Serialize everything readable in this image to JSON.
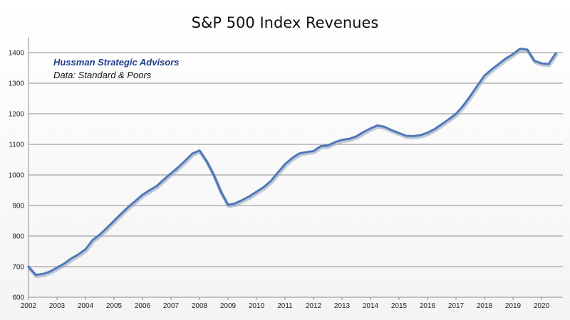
{
  "chart_data": {
    "type": "line",
    "title": "S&P 500 Index Revenues",
    "annotations": [
      "Hussman Strategic Advisors",
      "Data: Standard & Poors"
    ],
    "xlabel": "",
    "ylabel": "",
    "xlim": [
      2002,
      2020.75
    ],
    "ylim": [
      600,
      1450
    ],
    "x_ticks": [
      "2002",
      "2003",
      "2004",
      "2005",
      "2006",
      "2007",
      "2008",
      "2009",
      "2010",
      "2011",
      "2012",
      "2013",
      "2014",
      "2015",
      "2016",
      "2017",
      "2018",
      "2019",
      "2020"
    ],
    "y_ticks": [
      600,
      700,
      800,
      900,
      1000,
      1100,
      1200,
      1300,
      1400
    ],
    "grid": "horizontal",
    "line_color": "#4f78b8",
    "series": [
      {
        "x": [
          2002,
          2002.25,
          2002.5,
          2002.75,
          2003,
          2003.25,
          2003.5,
          2003.75,
          2004,
          2004.25,
          2004.5,
          2004.75,
          2005,
          2005.25,
          2005.5,
          2005.75,
          2006,
          2006.25,
          2006.5,
          2006.75,
          2007,
          2007.25,
          2007.5,
          2007.75,
          2008,
          2008.25,
          2008.5,
          2008.75,
          2009,
          2009.25,
          2009.5,
          2009.75,
          2010,
          2010.25,
          2010.5,
          2010.75,
          2011,
          2011.25,
          2011.5,
          2011.75,
          2012,
          2012.25,
          2012.5,
          2012.75,
          2013,
          2013.25,
          2013.5,
          2013.75,
          2014,
          2014.25,
          2014.5,
          2014.75,
          2015,
          2015.25,
          2015.5,
          2015.75,
          2016,
          2016.25,
          2016.5,
          2016.75,
          2017,
          2017.25,
          2017.5,
          2017.75,
          2018,
          2018.25,
          2018.5,
          2018.75,
          2019,
          2019.25,
          2019.5,
          2019.75,
          2020,
          2020.25,
          2020.5
        ],
        "y": [
          700,
          673,
          676,
          684,
          697,
          710,
          727,
          740,
          757,
          787,
          805,
          827,
          850,
          873,
          895,
          915,
          935,
          950,
          964,
          985,
          1005,
          1025,
          1047,
          1070,
          1080,
          1045,
          1000,
          945,
          902,
          907,
          918,
          930,
          945,
          960,
          980,
          1008,
          1035,
          1055,
          1070,
          1075,
          1078,
          1094,
          1096,
          1107,
          1115,
          1118,
          1126,
          1140,
          1152,
          1162,
          1157,
          1146,
          1137,
          1128,
          1127,
          1130,
          1138,
          1150,
          1166,
          1182,
          1200,
          1226,
          1258,
          1292,
          1325,
          1345,
          1363,
          1381,
          1395,
          1413,
          1410,
          1373,
          1365,
          1363,
          1398
        ]
      }
    ]
  }
}
